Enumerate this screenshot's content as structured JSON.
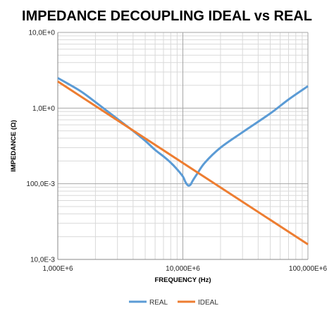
{
  "chart_data": {
    "type": "line",
    "title": "IMPEDANCE DECOUPLING IDEAL vs REAL",
    "xlabel": "FREQUENCY (Hz)",
    "ylabel": "IMPEDANCE (Ω)",
    "x_scale": "log",
    "y_scale": "log",
    "xlim": [
      1000000,
      100000000
    ],
    "ylim": [
      0.01,
      10
    ],
    "x_ticks": [
      {
        "value": 1000000,
        "label": "1,000E+6"
      },
      {
        "value": 10000000,
        "label": "10,000E+6"
      },
      {
        "value": 100000000,
        "label": "100,000E+6"
      }
    ],
    "y_ticks": [
      {
        "value": 10,
        "label": "10,0E+0"
      },
      {
        "value": 1,
        "label": "1,0E+0"
      },
      {
        "value": 0.1,
        "label": "100,0E-3"
      },
      {
        "value": 0.01,
        "label": "10,0E-3"
      }
    ],
    "grid": true,
    "legend_position": "bottom",
    "series": [
      {
        "name": "REAL",
        "color": "#5b9bd5",
        "x": [
          1000000,
          1500000,
          2000000,
          3000000,
          4000000,
          5000000,
          6000000,
          7000000,
          8000000,
          9000000,
          10000000,
          10500000,
          11000000,
          11500000,
          12000000,
          13000000,
          15000000,
          20000000,
          30000000,
          50000000,
          70000000,
          100000000
        ],
        "y": [
          2.5,
          1.7,
          1.2,
          0.72,
          0.5,
          0.37,
          0.28,
          0.23,
          0.19,
          0.155,
          0.125,
          0.105,
          0.095,
          0.097,
          0.11,
          0.135,
          0.19,
          0.3,
          0.48,
          0.85,
          1.3,
          1.95
        ]
      },
      {
        "name": "IDEAL",
        "color": "#ed7d31",
        "x": [
          1000000,
          100000000
        ],
        "y": [
          2.25,
          0.0158
        ]
      }
    ]
  },
  "legend": {
    "real_label": "REAL",
    "ideal_label": "IDEAL"
  }
}
